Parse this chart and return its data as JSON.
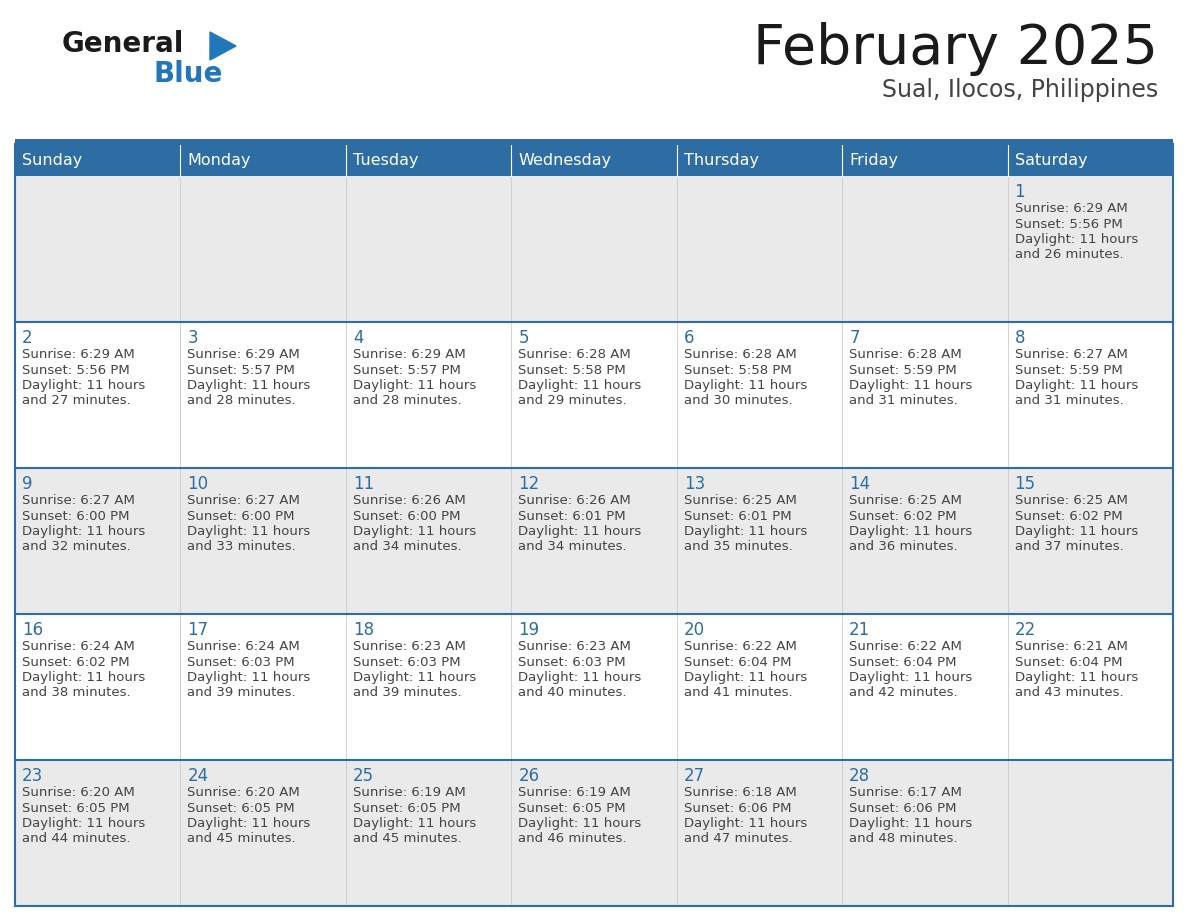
{
  "title": "February 2025",
  "subtitle": "Sual, Ilocos, Philippines",
  "header_color": "#2E6DA4",
  "header_text_color": "#FFFFFF",
  "cell_bg_even": "#EAEAEA",
  "cell_bg_odd": "#FFFFFF",
  "border_color": "#2E6DA4",
  "day_number_color": "#2E6DA4",
  "text_color": "#444444",
  "days_of_week": [
    "Sunday",
    "Monday",
    "Tuesday",
    "Wednesday",
    "Thursday",
    "Friday",
    "Saturday"
  ],
  "calendar_data": [
    [
      null,
      null,
      null,
      null,
      null,
      null,
      {
        "day": 1,
        "sunrise": "6:29 AM",
        "sunset": "5:56 PM",
        "daylight_hours": 11,
        "daylight_minutes": 26
      }
    ],
    [
      {
        "day": 2,
        "sunrise": "6:29 AM",
        "sunset": "5:56 PM",
        "daylight_hours": 11,
        "daylight_minutes": 27
      },
      {
        "day": 3,
        "sunrise": "6:29 AM",
        "sunset": "5:57 PM",
        "daylight_hours": 11,
        "daylight_minutes": 28
      },
      {
        "day": 4,
        "sunrise": "6:29 AM",
        "sunset": "5:57 PM",
        "daylight_hours": 11,
        "daylight_minutes": 28
      },
      {
        "day": 5,
        "sunrise": "6:28 AM",
        "sunset": "5:58 PM",
        "daylight_hours": 11,
        "daylight_minutes": 29
      },
      {
        "day": 6,
        "sunrise": "6:28 AM",
        "sunset": "5:58 PM",
        "daylight_hours": 11,
        "daylight_minutes": 30
      },
      {
        "day": 7,
        "sunrise": "6:28 AM",
        "sunset": "5:59 PM",
        "daylight_hours": 11,
        "daylight_minutes": 31
      },
      {
        "day": 8,
        "sunrise": "6:27 AM",
        "sunset": "5:59 PM",
        "daylight_hours": 11,
        "daylight_minutes": 31
      }
    ],
    [
      {
        "day": 9,
        "sunrise": "6:27 AM",
        "sunset": "6:00 PM",
        "daylight_hours": 11,
        "daylight_minutes": 32
      },
      {
        "day": 10,
        "sunrise": "6:27 AM",
        "sunset": "6:00 PM",
        "daylight_hours": 11,
        "daylight_minutes": 33
      },
      {
        "day": 11,
        "sunrise": "6:26 AM",
        "sunset": "6:00 PM",
        "daylight_hours": 11,
        "daylight_minutes": 34
      },
      {
        "day": 12,
        "sunrise": "6:26 AM",
        "sunset": "6:01 PM",
        "daylight_hours": 11,
        "daylight_minutes": 34
      },
      {
        "day": 13,
        "sunrise": "6:25 AM",
        "sunset": "6:01 PM",
        "daylight_hours": 11,
        "daylight_minutes": 35
      },
      {
        "day": 14,
        "sunrise": "6:25 AM",
        "sunset": "6:02 PM",
        "daylight_hours": 11,
        "daylight_minutes": 36
      },
      {
        "day": 15,
        "sunrise": "6:25 AM",
        "sunset": "6:02 PM",
        "daylight_hours": 11,
        "daylight_minutes": 37
      }
    ],
    [
      {
        "day": 16,
        "sunrise": "6:24 AM",
        "sunset": "6:02 PM",
        "daylight_hours": 11,
        "daylight_minutes": 38
      },
      {
        "day": 17,
        "sunrise": "6:24 AM",
        "sunset": "6:03 PM",
        "daylight_hours": 11,
        "daylight_minutes": 39
      },
      {
        "day": 18,
        "sunrise": "6:23 AM",
        "sunset": "6:03 PM",
        "daylight_hours": 11,
        "daylight_minutes": 39
      },
      {
        "day": 19,
        "sunrise": "6:23 AM",
        "sunset": "6:03 PM",
        "daylight_hours": 11,
        "daylight_minutes": 40
      },
      {
        "day": 20,
        "sunrise": "6:22 AM",
        "sunset": "6:04 PM",
        "daylight_hours": 11,
        "daylight_minutes": 41
      },
      {
        "day": 21,
        "sunrise": "6:22 AM",
        "sunset": "6:04 PM",
        "daylight_hours": 11,
        "daylight_minutes": 42
      },
      {
        "day": 22,
        "sunrise": "6:21 AM",
        "sunset": "6:04 PM",
        "daylight_hours": 11,
        "daylight_minutes": 43
      }
    ],
    [
      {
        "day": 23,
        "sunrise": "6:20 AM",
        "sunset": "6:05 PM",
        "daylight_hours": 11,
        "daylight_minutes": 44
      },
      {
        "day": 24,
        "sunrise": "6:20 AM",
        "sunset": "6:05 PM",
        "daylight_hours": 11,
        "daylight_minutes": 45
      },
      {
        "day": 25,
        "sunrise": "6:19 AM",
        "sunset": "6:05 PM",
        "daylight_hours": 11,
        "daylight_minutes": 45
      },
      {
        "day": 26,
        "sunrise": "6:19 AM",
        "sunset": "6:05 PM",
        "daylight_hours": 11,
        "daylight_minutes": 46
      },
      {
        "day": 27,
        "sunrise": "6:18 AM",
        "sunset": "6:06 PM",
        "daylight_hours": 11,
        "daylight_minutes": 47
      },
      {
        "day": 28,
        "sunrise": "6:17 AM",
        "sunset": "6:06 PM",
        "daylight_hours": 11,
        "daylight_minutes": 48
      },
      null
    ]
  ],
  "figsize": [
    11.88,
    9.18
  ],
  "dpi": 100,
  "logo_general_color": "#1a1a1a",
  "logo_blue_color": "#2277BB",
  "logo_triangle_color": "#2277BB",
  "title_color": "#1a1a1a",
  "subtitle_color": "#444444"
}
